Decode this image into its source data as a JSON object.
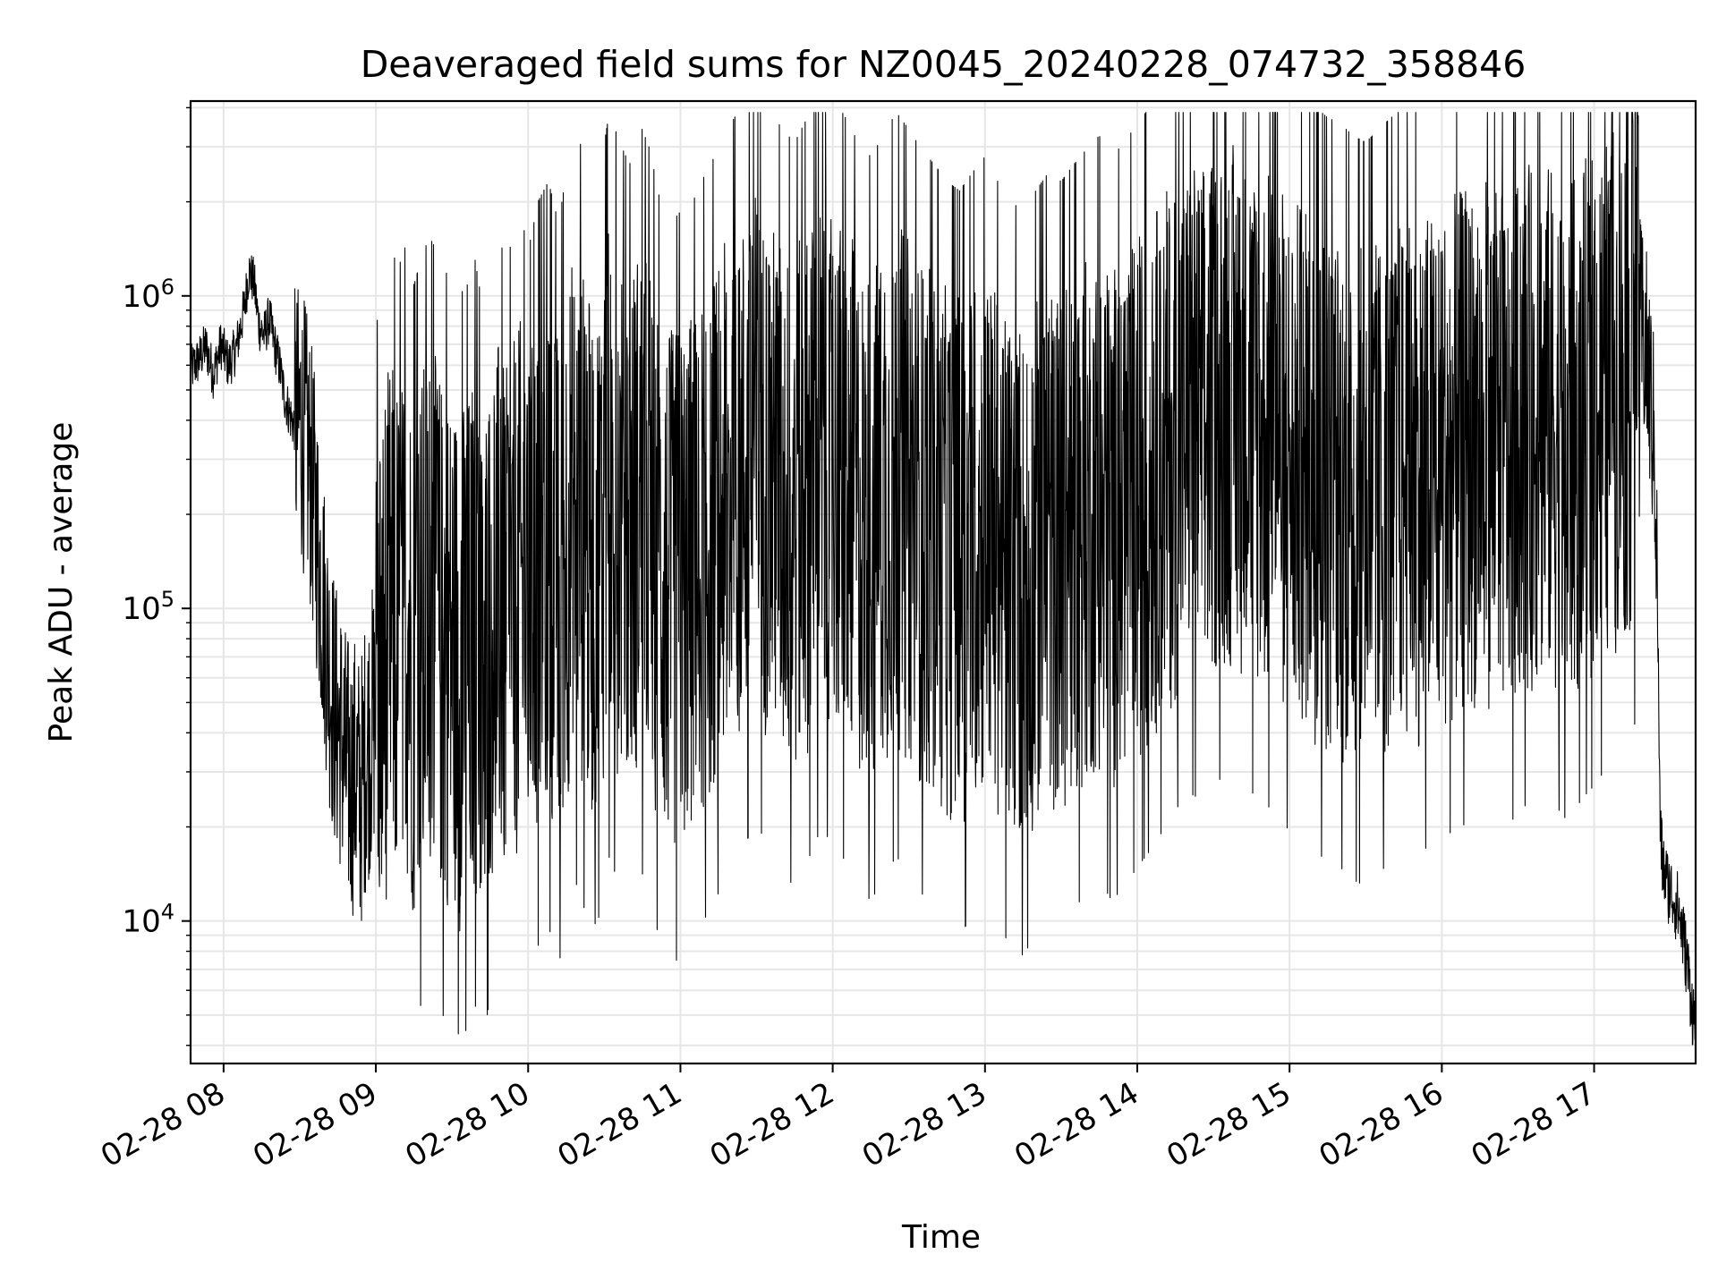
{
  "chart_data": {
    "type": "line",
    "title": "Deaveraged field sums for NZ0045_20240228_074732_358846",
    "xlabel": "Time",
    "ylabel": "Peak ADU - average",
    "yscale": "log",
    "ylim": [
      3500,
      4200000
    ],
    "xlim": [
      "2024-02-28 07:47",
      "2024-02-28 17:40"
    ],
    "x_ticks": [
      "02-28 08",
      "02-28 09",
      "02-28 10",
      "02-28 11",
      "02-28 12",
      "02-28 13",
      "02-28 14",
      "02-28 15",
      "02-28 16",
      "02-28 17"
    ],
    "y_ticks": [
      {
        "value": 10000,
        "base": "10",
        "exp": "4"
      },
      {
        "value": 100000,
        "base": "10",
        "exp": "5"
      },
      {
        "value": 1000000,
        "base": "10",
        "exp": "6"
      }
    ],
    "grid": true,
    "series": [
      {
        "color": "#000000",
        "points": [
          [
            "07:47",
            580000
          ],
          [
            "07:50",
            620000
          ],
          [
            "07:53",
            690000
          ],
          [
            "07:56",
            560000
          ],
          [
            "07:59",
            700000
          ],
          [
            "08:02",
            600000
          ],
          [
            "08:05",
            680000
          ],
          [
            "08:08",
            900000
          ],
          [
            "08:10",
            1200000
          ],
          [
            "08:12",
            1100000
          ],
          [
            "08:14",
            800000
          ],
          [
            "08:16",
            750000
          ],
          [
            "08:18",
            850000
          ],
          [
            "08:20",
            700000
          ],
          [
            "08:22",
            600000
          ],
          [
            "08:24",
            480000
          ],
          [
            "08:26",
            420000
          ],
          [
            "08:28",
            380000
          ],
          [
            "08:30",
            400000
          ],
          [
            "08:32",
            350000
          ],
          [
            "08:34",
            280000
          ],
          [
            "08:36",
            200000
          ],
          [
            "08:38",
            130000
          ],
          [
            "08:40",
            90000
          ],
          [
            "08:42",
            60000
          ],
          [
            "08:44",
            45000
          ],
          [
            "08:46",
            40000
          ],
          [
            "08:48",
            32000
          ],
          [
            "08:50",
            28000
          ],
          [
            "08:52",
            30000
          ],
          [
            "08:54",
            25000
          ],
          [
            "08:56",
            35000
          ],
          [
            "08:58",
            40000
          ],
          [
            "09:00",
            50000
          ],
          [
            "09:03",
            75000
          ],
          [
            "09:06",
            90000
          ],
          [
            "09:09",
            80000
          ],
          [
            "09:12",
            95000
          ],
          [
            "09:15",
            70000
          ],
          [
            "09:18",
            85000
          ],
          [
            "09:21",
            100000
          ],
          [
            "09:24",
            90000
          ],
          [
            "09:27",
            75000
          ],
          [
            "09:30",
            80000
          ],
          [
            "09:33",
            65000
          ],
          [
            "09:36",
            70000
          ],
          [
            "09:39",
            85000
          ],
          [
            "09:42",
            60000
          ],
          [
            "09:45",
            90000
          ],
          [
            "09:48",
            110000
          ],
          [
            "09:51",
            80000
          ],
          [
            "09:54",
            100000
          ],
          [
            "09:57",
            120000
          ],
          [
            "10:00",
            90000
          ],
          [
            "10:04",
            130000
          ],
          [
            "10:08",
            150000
          ],
          [
            "10:12",
            110000
          ],
          [
            "10:16",
            180000
          ],
          [
            "10:20",
            210000
          ],
          [
            "10:24",
            140000
          ],
          [
            "10:28",
            160000
          ],
          [
            "10:32",
            250000
          ],
          [
            "10:36",
            200000
          ],
          [
            "10:40",
            170000
          ],
          [
            "10:44",
            230000
          ],
          [
            "10:48",
            190000
          ],
          [
            "10:52",
            130000
          ],
          [
            "10:56",
            110000
          ],
          [
            "11:00",
            120000
          ],
          [
            "11:05",
            130000
          ],
          [
            "11:10",
            160000
          ],
          [
            "11:15",
            190000
          ],
          [
            "11:20",
            230000
          ],
          [
            "11:25",
            270000
          ],
          [
            "11:30",
            320000
          ],
          [
            "11:35",
            260000
          ],
          [
            "11:40",
            220000
          ],
          [
            "11:45",
            200000
          ],
          [
            "11:50",
            240000
          ],
          [
            "11:55",
            300000
          ],
          [
            "12:00",
            280000
          ],
          [
            "12:05",
            240000
          ],
          [
            "12:10",
            200000
          ],
          [
            "12:15",
            180000
          ],
          [
            "12:20",
            210000
          ],
          [
            "12:25",
            250000
          ],
          [
            "12:30",
            220000
          ],
          [
            "12:35",
            190000
          ],
          [
            "12:40",
            170000
          ],
          [
            "12:45",
            150000
          ],
          [
            "12:50",
            140000
          ],
          [
            "12:55",
            160000
          ],
          [
            "13:00",
            180000
          ],
          [
            "13:05",
            150000
          ],
          [
            "13:10",
            130000
          ],
          [
            "13:15",
            120000
          ],
          [
            "13:20",
            140000
          ],
          [
            "13:25",
            160000
          ],
          [
            "13:30",
            150000
          ],
          [
            "13:35",
            170000
          ],
          [
            "13:40",
            190000
          ],
          [
            "13:45",
            210000
          ],
          [
            "13:50",
            180000
          ],
          [
            "13:55",
            200000
          ],
          [
            "14:00",
            230000
          ],
          [
            "14:05",
            260000
          ],
          [
            "14:10",
            300000
          ],
          [
            "14:15",
            350000
          ],
          [
            "14:20",
            400000
          ],
          [
            "14:25",
            380000
          ],
          [
            "14:30",
            420000
          ],
          [
            "14:35",
            460000
          ],
          [
            "14:40",
            430000
          ],
          [
            "14:45",
            400000
          ],
          [
            "14:50",
            370000
          ],
          [
            "14:55",
            340000
          ],
          [
            "15:00",
            300000
          ],
          [
            "15:05",
            280000
          ],
          [
            "15:10",
            260000
          ],
          [
            "15:15",
            240000
          ],
          [
            "15:20",
            230000
          ],
          [
            "15:25",
            210000
          ],
          [
            "15:30",
            200000
          ],
          [
            "15:35",
            220000
          ],
          [
            "15:40",
            240000
          ],
          [
            "15:45",
            260000
          ],
          [
            "15:50",
            250000
          ],
          [
            "15:55",
            270000
          ],
          [
            "16:00",
            290000
          ],
          [
            "16:05",
            300000
          ],
          [
            "16:10",
            320000
          ],
          [
            "16:15",
            350000
          ],
          [
            "16:20",
            330000
          ],
          [
            "16:25",
            310000
          ],
          [
            "16:30",
            340000
          ],
          [
            "16:35",
            380000
          ],
          [
            "16:40",
            400000
          ],
          [
            "16:45",
            360000
          ],
          [
            "16:50",
            320000
          ],
          [
            "16:55",
            380000
          ],
          [
            "17:00",
            420000
          ],
          [
            "17:05",
            480000
          ],
          [
            "17:10",
            520000
          ],
          [
            "17:15",
            600000
          ],
          [
            "17:18",
            800000
          ],
          [
            "17:20",
            700000
          ],
          [
            "17:22",
            500000
          ],
          [
            "17:24",
            300000
          ],
          [
            "17:25",
            100000
          ],
          [
            "17:26",
            20000
          ],
          [
            "17:27",
            15000
          ],
          [
            "17:29",
            13000
          ],
          [
            "17:31",
            12000
          ],
          [
            "17:33",
            11000
          ],
          [
            "17:35",
            9000
          ],
          [
            "17:37",
            7000
          ],
          [
            "17:39",
            5000
          ],
          [
            "17:40",
            4500
          ]
        ]
      }
    ]
  }
}
